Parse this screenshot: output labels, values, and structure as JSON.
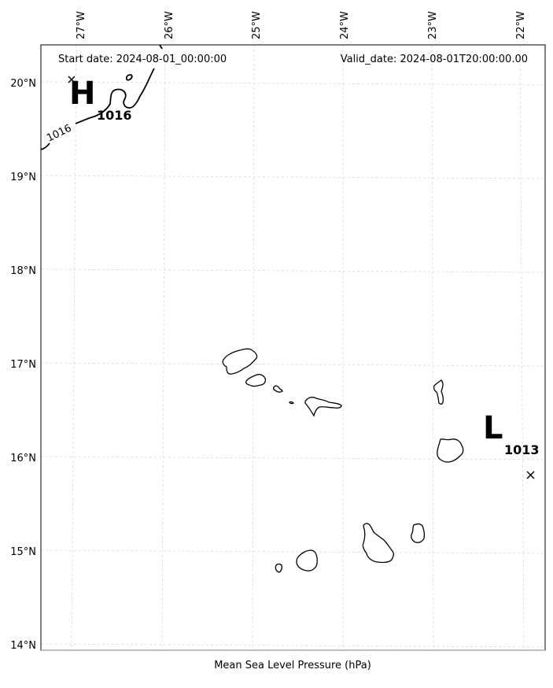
{
  "header": {
    "start_date": "Start date: 2024-08-01_00:00:00",
    "valid_date": "Valid_date: 2024-08-01T20:00:00.00"
  },
  "footer": {
    "caption": "Mean Sea Level Pressure (hPa)"
  },
  "axes": {
    "longitude_labels": [
      "27°W",
      "26°W",
      "25°W",
      "24°W",
      "23°W",
      "22°W"
    ],
    "latitude_labels": [
      "20°N",
      "19°N",
      "18°N",
      "17°N",
      "16°N",
      "15°N",
      "14°N"
    ]
  },
  "pressure_centers": {
    "high": {
      "letter": "H",
      "value": "1016"
    },
    "low": {
      "letter": "L",
      "value": "1013"
    }
  },
  "isobar": {
    "label": "1016"
  },
  "colors": {
    "ink": "#000000",
    "grid": "#d0d0d0",
    "background": "#ffffff"
  }
}
